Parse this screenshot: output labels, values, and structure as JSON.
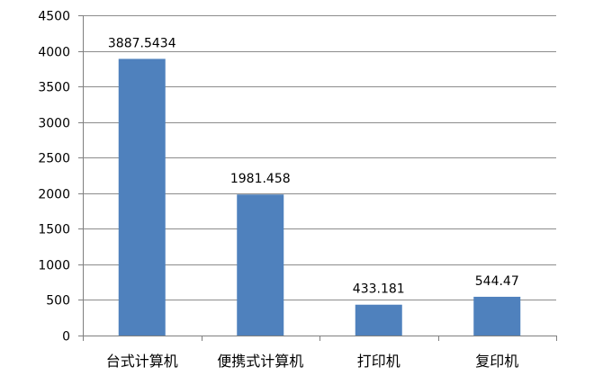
{
  "chart_data": {
    "type": "bar",
    "categories": [
      "台式计算机",
      "便携式计算机",
      "打印机",
      "复印机"
    ],
    "values": [
      3887.5434,
      1981.458,
      433.181,
      544.47
    ],
    "value_labels": [
      "3887.5434",
      "1981.458",
      "433.181",
      "544.47"
    ],
    "y_ticks": [
      0,
      500,
      1000,
      1500,
      2000,
      2500,
      3000,
      3500,
      4000,
      4500
    ],
    "ylim": [
      0,
      4500
    ],
    "title": "",
    "xlabel": "",
    "ylabel": "",
    "grid": true,
    "legend": "none",
    "colors": {
      "bar": "#4F81BD",
      "bar_edge": "#4472A8",
      "grid": "#8C8C8C",
      "axis": "#7F7F7F",
      "text": "#000000"
    }
  }
}
